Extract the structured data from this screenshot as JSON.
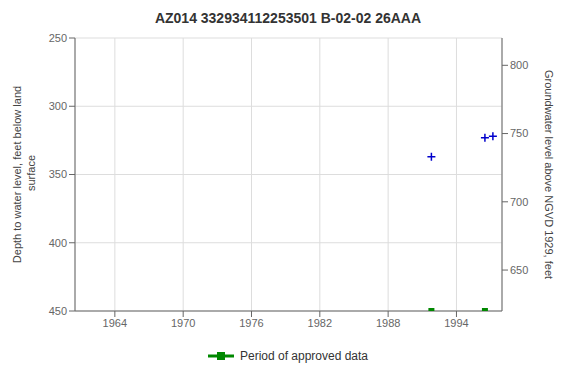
{
  "chart_data": {
    "type": "scatter",
    "title": "AZ014 332934112253501 B-02-02 26AAA",
    "ylabel": "Depth to water level, feet below land\n surface",
    "y2label": "Groundwater level above NGVD 1929, feet",
    "xlim": [
      1960.5,
      1998
    ],
    "xticks": [
      1964,
      1970,
      1976,
      1982,
      1988,
      1994
    ],
    "ylim": [
      450,
      250
    ],
    "yticks": [
      250,
      300,
      350,
      400,
      450
    ],
    "y2lim": [
      620,
      820
    ],
    "y2ticks": [
      650,
      700,
      750,
      800
    ],
    "grid": true,
    "legend": "bottom",
    "series": [
      {
        "color": "#0000cc",
        "marker": "plus",
        "x": [
          1991.8,
          1996.5,
          1997.2
        ],
        "values": [
          337,
          323,
          322
        ]
      },
      {
        "name": "Period of approved data",
        "color": "#008800",
        "marker": "square",
        "x": [
          1991.8,
          1996.5
        ],
        "values": [
          450,
          450
        ]
      }
    ]
  }
}
